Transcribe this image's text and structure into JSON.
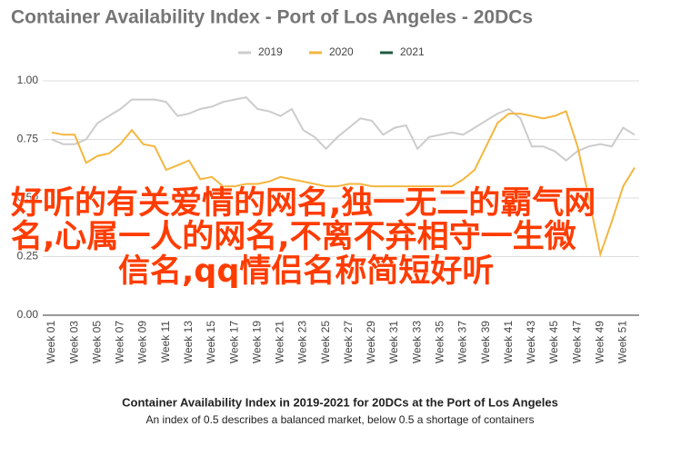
{
  "chart_data": {
    "type": "line",
    "title": "Container Availability Index - Port of Los Angeles - 20DCs",
    "caption_title": "Container Availability Index in 2019-2021 for 20DCs at the Port of Los Angeles",
    "caption_subtitle": "An index of 0.5 describes a balanced market, below 0.5 a shortage of containers",
    "categories": [
      "Week 01",
      null,
      "Week 03",
      null,
      "Week 05",
      null,
      "Week 07",
      null,
      "Week 09",
      null,
      "Week 11",
      null,
      "Week 13",
      null,
      "Week 15",
      null,
      "Week 17",
      null,
      "Week 19",
      null,
      "Week 21",
      null,
      "Week 23",
      null,
      "Week 25",
      null,
      "Week 27",
      null,
      "Week 29",
      null,
      "Week 31",
      null,
      "Week 33",
      null,
      "Week 35",
      null,
      "Week 37",
      null,
      "Week 39",
      null,
      "Week 41",
      null,
      "Week 43",
      null,
      "Week 45",
      null,
      "Week 47",
      null,
      "Week 49",
      null,
      "Week 51",
      null
    ],
    "series": [
      {
        "name": "2019",
        "color": "#cccccc",
        "values": [
          0.75,
          0.73,
          0.73,
          0.75,
          0.82,
          0.85,
          0.88,
          0.92,
          0.92,
          0.92,
          0.91,
          0.85,
          0.86,
          0.88,
          0.89,
          0.91,
          0.92,
          0.93,
          0.88,
          0.87,
          0.85,
          0.88,
          0.79,
          0.76,
          0.71,
          0.76,
          0.8,
          0.84,
          0.83,
          0.77,
          0.8,
          0.81,
          0.71,
          0.76,
          0.77,
          0.78,
          0.77,
          0.8,
          0.83,
          0.86,
          0.88,
          0.84,
          0.72,
          0.72,
          0.7,
          0.66,
          0.7,
          0.72,
          0.73,
          0.72,
          0.8,
          0.77
        ]
      },
      {
        "name": "2020",
        "color": "#f4b63f",
        "values": [
          0.78,
          0.77,
          0.77,
          0.65,
          0.68,
          0.69,
          0.73,
          0.79,
          0.73,
          0.72,
          0.62,
          0.64,
          0.66,
          0.58,
          0.59,
          0.55,
          0.55,
          0.56,
          0.56,
          0.57,
          0.59,
          0.58,
          0.57,
          0.56,
          0.55,
          0.55,
          0.56,
          0.56,
          0.55,
          0.55,
          0.55,
          0.55,
          0.55,
          0.55,
          0.55,
          0.55,
          0.58,
          0.62,
          0.72,
          0.82,
          0.86,
          0.86,
          0.85,
          0.84,
          0.85,
          0.87,
          0.72,
          0.5,
          0.26,
          0.4,
          0.55,
          0.63
        ]
      },
      {
        "name": "2021",
        "color": "#1f5c3f",
        "values": [
          null,
          null,
          null,
          null,
          null,
          null,
          null,
          null,
          null,
          null,
          null,
          null,
          null,
          null,
          null,
          null,
          null,
          null,
          null,
          null,
          null,
          null,
          null,
          null,
          null,
          null,
          null,
          null,
          null,
          null,
          null,
          null,
          null,
          null,
          null,
          null,
          null,
          null,
          null,
          null,
          null,
          null,
          null,
          null,
          null,
          null,
          null,
          null,
          null,
          null,
          null,
          null
        ]
      }
    ],
    "ylim": [
      0,
      1
    ],
    "yticks": [
      {
        "value": 0,
        "label": "0.00"
      },
      0.25,
      {
        "value": 0.5,
        "label": "0.50"
      },
      0.75,
      {
        "value": 1,
        "label": "1.00"
      }
    ],
    "grid": true,
    "legend": "top",
    "overlay_text": [
      "好听的有关爱情的网名,独一无二的霸气网",
      "名,心属一人的网名,不离不弃相守一生微",
      "信名,qq情侣名称简短好听"
    ]
  }
}
